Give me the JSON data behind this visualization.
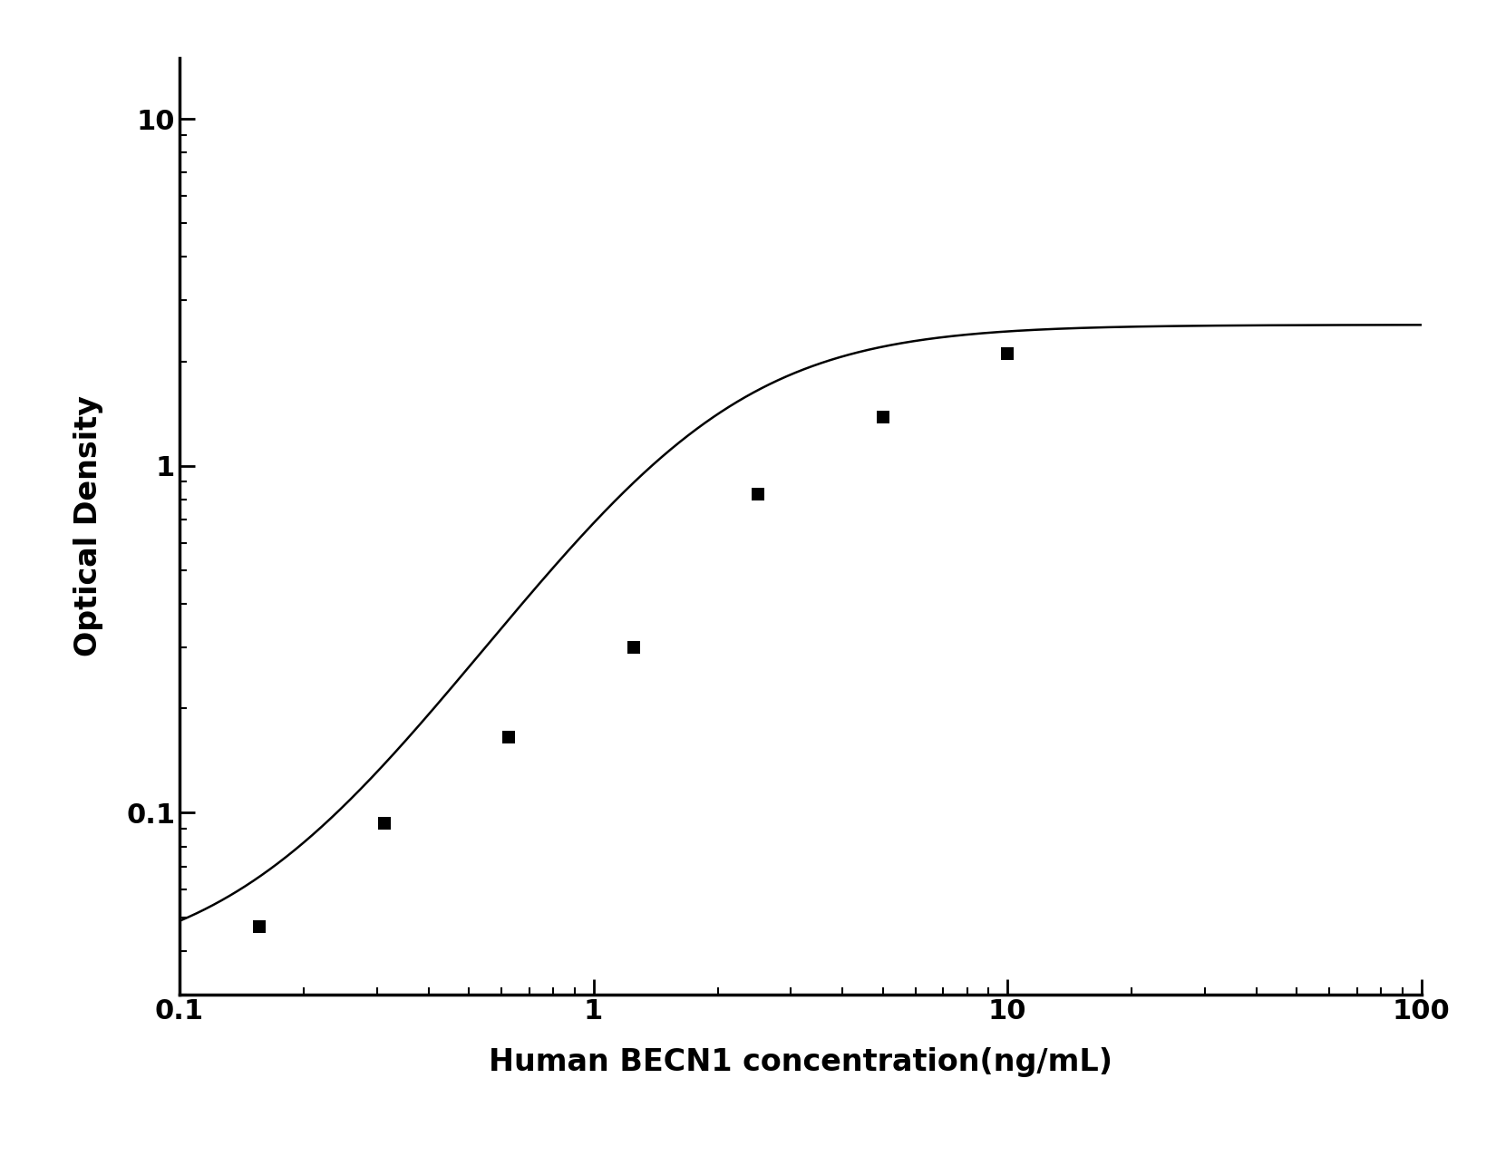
{
  "x_data": [
    0.156,
    0.313,
    0.625,
    1.25,
    2.5,
    5.0,
    10.0
  ],
  "y_data": [
    0.047,
    0.093,
    0.165,
    0.3,
    0.83,
    1.38,
    2.1
  ],
  "xlabel": "Human BECN1 concentration(ng/mL)",
  "ylabel": "Optical Density",
  "xlim": [
    0.1,
    100
  ],
  "ylim": [
    0.03,
    15
  ],
  "x_ticks": [
    0.1,
    1,
    10,
    100
  ],
  "y_ticks": [
    0.1,
    1,
    10
  ],
  "marker_color": "#000000",
  "line_color": "#000000",
  "marker_size": 10,
  "line_width": 1.8,
  "xlabel_fontsize": 24,
  "ylabel_fontsize": 24,
  "tick_fontsize": 22,
  "background_color": "#ffffff",
  "marker_style": "s",
  "four_pl_A": 0.035,
  "four_pl_B": 1.8,
  "four_pl_C": 1.8,
  "four_pl_D": 2.55
}
